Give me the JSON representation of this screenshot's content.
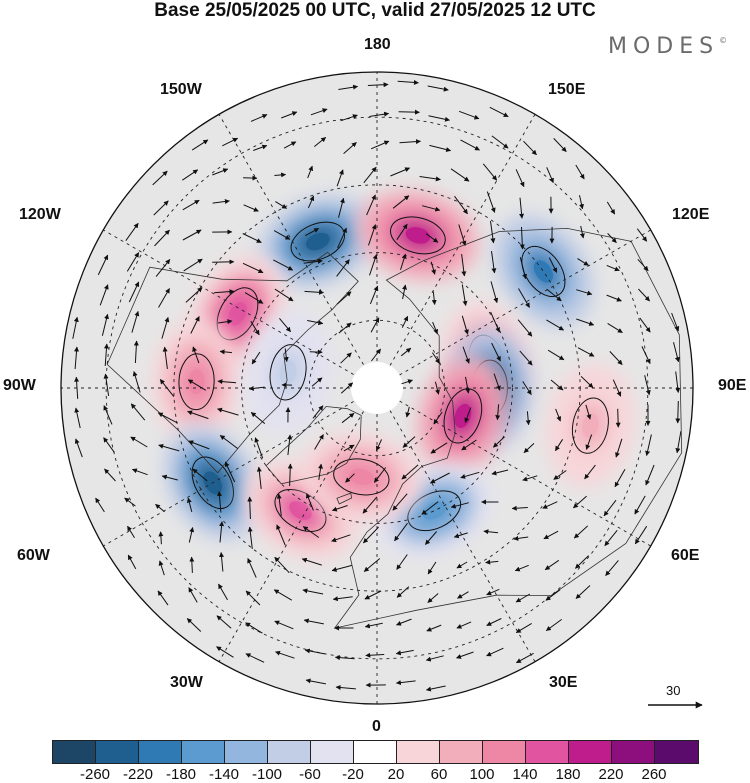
{
  "title": "Base 25/05/2025 00 UTC, valid 27/05/2025 12 UTC",
  "brand": {
    "name": "MODES",
    "mark": "©"
  },
  "longitude_labels": {
    "lon_180": "180",
    "lon_150w": "150W",
    "lon_150e": "150E",
    "lon_120w": "120W",
    "lon_120e": "120E",
    "lon_90w": "90W",
    "lon_90e": "90E",
    "lon_60w": "60W",
    "lon_60e": "60E",
    "lon_30w": "30W",
    "lon_30e": "30E",
    "lon_0": "0"
  },
  "wind_reference": {
    "label": "30"
  },
  "colorbar": {
    "ticks": [
      "-260",
      "-220",
      "-180",
      "-140",
      "-100",
      "-60",
      "-20",
      "20",
      "60",
      "100",
      "140",
      "180",
      "220",
      "260"
    ],
    "colors": [
      "#1d4566",
      "#1f5f8f",
      "#2f7ab5",
      "#5b9bd0",
      "#92b6dd",
      "#c2cde6",
      "#e3e2f0",
      "#ffffff",
      "#f8d5d9",
      "#f2aeba",
      "#ee86a6",
      "#e1549f",
      "#bf1d8c",
      "#8c0f7d",
      "#5a0b6b"
    ]
  },
  "map_colors": {
    "land": "#e6e6e6",
    "ocean": "#ffffff",
    "grid": "#222222",
    "arrow": "#111111"
  },
  "anomalies": [
    {
      "name": "low-150w",
      "lon": -158,
      "lat": 55,
      "value": -240
    },
    {
      "name": "high-160e",
      "lon": 165,
      "lat": 55,
      "value": 190
    },
    {
      "name": "low-120e",
      "lon": 125,
      "lat": 45,
      "value": -200
    },
    {
      "name": "high-115w",
      "lon": -118,
      "lat": 55,
      "value": 170
    },
    {
      "name": "high-105e",
      "lon": 103,
      "lat": 65,
      "value": 150
    },
    {
      "name": "low-90e",
      "lon": 90,
      "lat": 65,
      "value": -260
    },
    {
      "name": "high-70e",
      "lon": 72,
      "lat": 70,
      "value": 190
    },
    {
      "name": "high-90w",
      "lon": -92,
      "lat": 50,
      "value": 130
    },
    {
      "name": "low-60w",
      "lon": -60,
      "lat": 48,
      "value": -240
    },
    {
      "name": "high-35w",
      "lon": -32,
      "lat": 58,
      "value": 140
    },
    {
      "name": "low-25e",
      "lon": 25,
      "lat": 60,
      "value": -180
    },
    {
      "name": "high-10w",
      "lon": -10,
      "lat": 70,
      "value": 120
    },
    {
      "name": "high-80e",
      "lon": 80,
      "lat": 42,
      "value": 80
    },
    {
      "name": "low-100w",
      "lon": -100,
      "lat": 70,
      "value": -90
    }
  ]
}
